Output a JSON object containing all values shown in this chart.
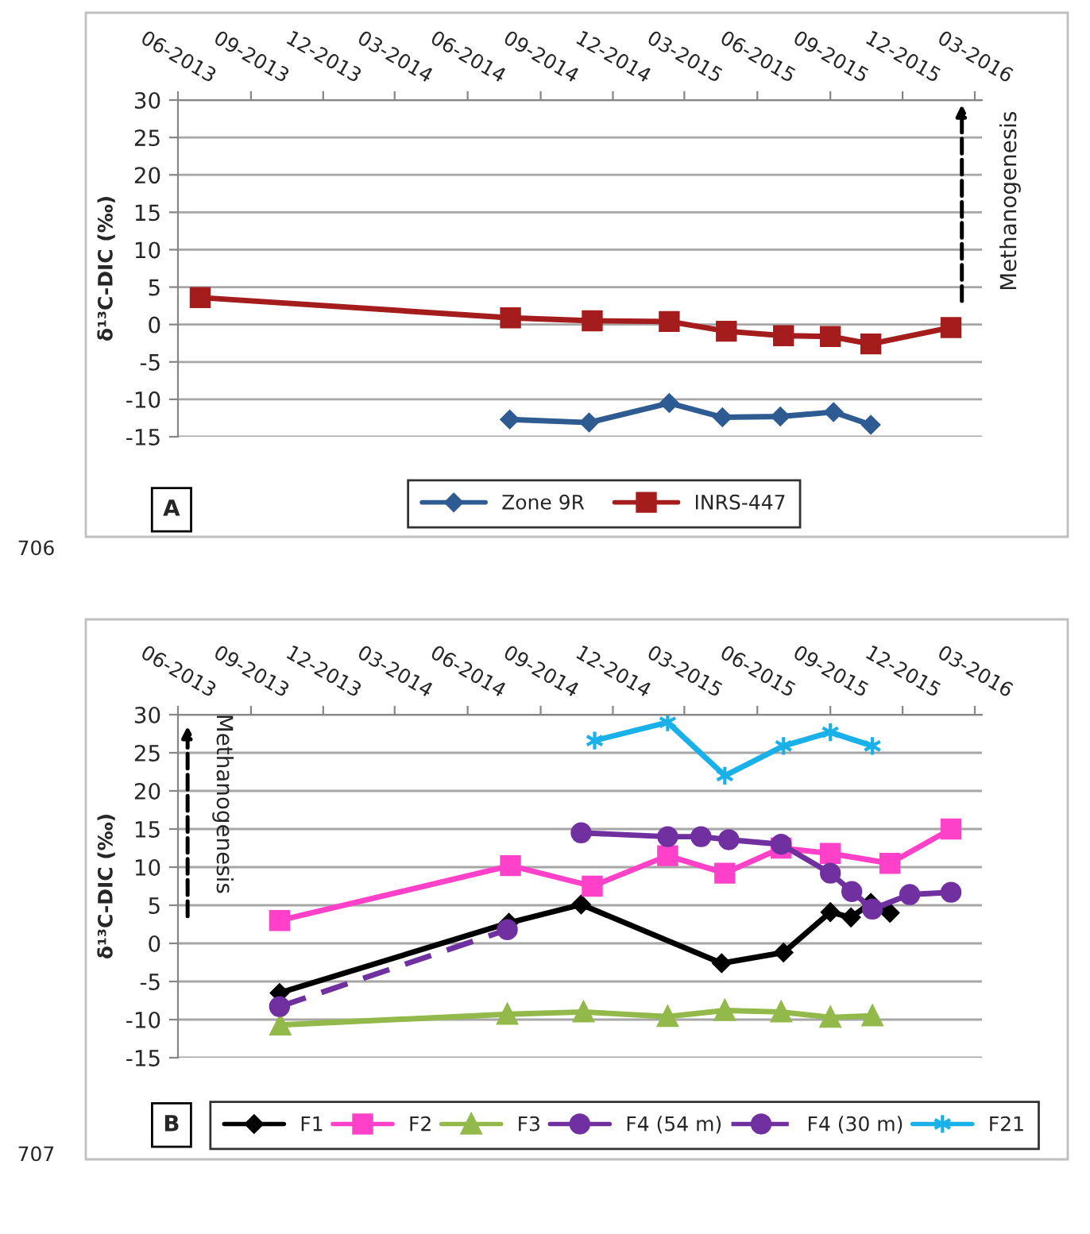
{
  "chart_data": [
    {
      "type": "line",
      "ylabel": "δ¹³C-DIC (‰)",
      "xlim": [
        "2013-06-01",
        "2016-03-10"
      ],
      "xticks": [
        {
          "value": "2013-06",
          "label": "06-2013"
        },
        {
          "value": "2013-09",
          "label": "09-2013"
        },
        {
          "value": "2013-12",
          "label": "12-2013"
        },
        {
          "value": "2014-03",
          "label": "03-2014"
        },
        {
          "value": "2014-06",
          "label": "06-2014"
        },
        {
          "value": "2014-09",
          "label": "09-2014"
        },
        {
          "value": "2014-12",
          "label": "12-2014"
        },
        {
          "value": "2015-03",
          "label": "03-2015"
        },
        {
          "value": "2015-06",
          "label": "06-2015"
        },
        {
          "value": "2015-09",
          "label": "09-2015"
        },
        {
          "value": "2015-12",
          "label": "12-2015"
        },
        {
          "value": "2016-03",
          "label": "03-2016"
        }
      ],
      "ylim": [
        -15,
        30
      ],
      "yticks": [
        -15,
        -10,
        -5,
        0,
        5,
        10,
        15,
        20,
        25,
        30
      ],
      "grid": "y",
      "legend": "bottom",
      "series": [
        {
          "name": "Zone 9R",
          "color": "#2e5b91",
          "marker": "diamond",
          "line_style": "solid",
          "x": [
            "2014-07-24",
            "2014-11-01",
            "2015-02-10",
            "2015-04-18",
            "2015-06-30",
            "2015-09-05",
            "2015-10-22"
          ],
          "values": [
            -12.7,
            -13.1,
            -10.5,
            -12.4,
            -12.3,
            -11.7,
            -13.4
          ]
        },
        {
          "name": "INRS-447",
          "color": "#a51c1c",
          "marker": "square",
          "line_style": "solid",
          "x": [
            "2013-06-29",
            "2014-07-25",
            "2014-11-05",
            "2015-02-10",
            "2015-04-23",
            "2015-07-04",
            "2015-09-01",
            "2015-10-22",
            "2016-01-31"
          ],
          "values": [
            3.6,
            0.9,
            0.5,
            0.4,
            -0.9,
            -1.5,
            -1.6,
            -2.6,
            -0.4
          ]
        }
      ],
      "annotations": [
        "A",
        "Methanogenesis",
        "706"
      ]
    },
    {
      "type": "line",
      "ylabel": "δ¹³C-DIC (‰)",
      "xlim": [
        "2013-06-01",
        "2016-03-10"
      ],
      "xticks": [
        {
          "value": "2013-06",
          "label": "06-2013"
        },
        {
          "value": "2013-09",
          "label": "09-2013"
        },
        {
          "value": "2013-12",
          "label": "12-2013"
        },
        {
          "value": "2014-03",
          "label": "03-2014"
        },
        {
          "value": "2014-06",
          "label": "06-2014"
        },
        {
          "value": "2014-09",
          "label": "09-2014"
        },
        {
          "value": "2014-12",
          "label": "12-2014"
        },
        {
          "value": "2015-03",
          "label": "03-2015"
        },
        {
          "value": "2015-06",
          "label": "06-2015"
        },
        {
          "value": "2015-09",
          "label": "09-2015"
        },
        {
          "value": "2015-12",
          "label": "12-2015"
        },
        {
          "value": "2016-03",
          "label": "03-2016"
        }
      ],
      "ylim": [
        -15,
        30
      ],
      "yticks": [
        -15,
        -10,
        -5,
        0,
        5,
        10,
        15,
        20,
        25,
        30
      ],
      "grid": "y",
      "legend": "bottom",
      "series": [
        {
          "name": "F1",
          "color": "#000000",
          "marker": "diamond",
          "line_style": "solid",
          "x": [
            "2013-10-07",
            "2014-07-23",
            "2014-10-22",
            "2015-04-17",
            "2015-07-04",
            "2015-09-01",
            "2015-09-27",
            "2015-10-22",
            "2015-11-15"
          ],
          "values": [
            -6.5,
            2.7,
            5.1,
            -2.6,
            -1.2,
            4.1,
            3.4,
            5.3,
            4.0
          ]
        },
        {
          "name": "F2",
          "color": "#ff40c8",
          "marker": "square",
          "line_style": "solid",
          "x": [
            "2013-10-07",
            "2014-07-25",
            "2014-11-05",
            "2015-02-08",
            "2015-04-21",
            "2015-07-01",
            "2015-09-01",
            "2015-11-15",
            "2016-01-31"
          ],
          "values": [
            3.0,
            10.2,
            7.5,
            11.5,
            9.2,
            12.5,
            11.8,
            10.5,
            15.0
          ]
        },
        {
          "name": "F3",
          "color": "#92b94a",
          "marker": "triangle",
          "line_style": "solid",
          "x": [
            "2013-10-08",
            "2014-07-21",
            "2014-10-25",
            "2015-02-08",
            "2015-04-21",
            "2015-07-01",
            "2015-09-01",
            "2015-10-24"
          ],
          "values": [
            -10.7,
            -9.3,
            -9.0,
            -9.6,
            -8.8,
            -9.0,
            -9.7,
            -9.5
          ]
        },
        {
          "name": "F4 (54 m)",
          "color": "#7030a0",
          "marker": "circle",
          "line_style": "solid",
          "x": [
            "2014-10-22",
            "2015-02-08",
            "2015-03-22",
            "2015-04-26",
            "2015-07-01",
            "2015-09-01",
            "2015-09-28",
            "2015-10-24",
            "2015-12-10",
            "2016-01-31"
          ],
          "values": [
            14.5,
            14.0,
            14.0,
            13.6,
            13.0,
            9.2,
            6.8,
            4.5,
            6.4,
            6.7
          ]
        },
        {
          "name": "F4 (30 m)",
          "color": "#7030a0",
          "marker": "circle",
          "line_style": "dashed",
          "x": [
            "2013-10-07",
            "2014-07-21"
          ],
          "values": [
            -8.3,
            1.8
          ]
        },
        {
          "name": "F21",
          "color": "#1ab0e8",
          "marker": "cross",
          "line_style": "solid",
          "x": [
            "2014-11-08",
            "2015-02-08",
            "2015-04-21",
            "2015-07-04",
            "2015-09-01",
            "2015-10-24"
          ],
          "values": [
            26.6,
            29.0,
            22.0,
            25.9,
            27.7,
            25.9
          ]
        }
      ],
      "annotations": [
        "B",
        "Methanogenesis",
        "707"
      ]
    }
  ]
}
